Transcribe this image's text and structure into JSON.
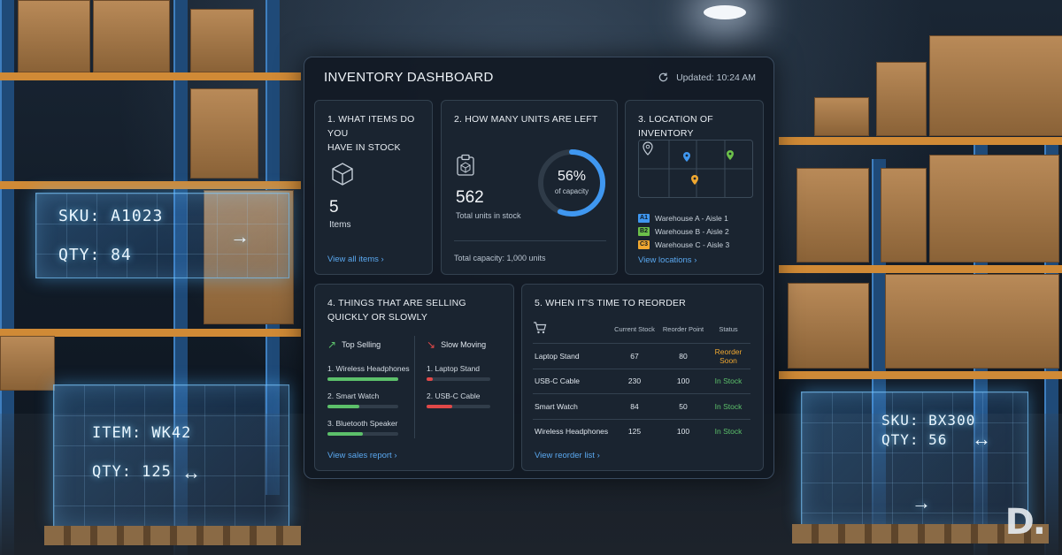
{
  "dashboard": {
    "title": "INVENTORY DASHBOARD",
    "updated": "Updated: 10:24 AM"
  },
  "stock_card": {
    "title_line1": "1. WHAT ITEMS DO YOU",
    "title_line2": "HAVE IN STOCK",
    "count": "5",
    "count_label": "Items",
    "link": "View all items",
    "icon": "box-icon"
  },
  "units_card": {
    "title": "2. HOW MANY UNITS ARE LEFT",
    "units": "562",
    "units_label": "Total units in stock",
    "capacity_percent_label": "56%",
    "capacity_sub": "of capacity",
    "capacity_fraction": 0.56,
    "total_capacity": "Total capacity: 1,000 units",
    "ring_color": "#3f97f0",
    "icon": "clipboard-icon"
  },
  "location_card": {
    "title": "3. LOCATION OF INVENTORY",
    "legend": [
      {
        "badge": "A1",
        "label": "Warehouse A - Aisle 1",
        "color": "#3f97f0"
      },
      {
        "badge": "B2",
        "label": "Warehouse B - Aisle 2",
        "color": "#6cc04a"
      },
      {
        "badge": "C3",
        "label": "Warehouse C - Aisle 3",
        "color": "#f0a830"
      }
    ],
    "link": "View locations",
    "icon": "map-pin-icon"
  },
  "selling_card": {
    "title_line1": "4. THINGS THAT ARE SELLING",
    "title_line2": "QUICKLY OR SLOWLY",
    "top_heading": "Top Selling",
    "slow_heading": "Slow Moving",
    "top_items": [
      {
        "label": "1. Wireless Headphones",
        "fill": 1.0
      },
      {
        "label": "2. Smart Watch",
        "fill": 0.45
      },
      {
        "label": "3. Bluetooth Speaker",
        "fill": 0.5
      }
    ],
    "slow_items": [
      {
        "label": "1. Laptop Stand",
        "fill": 0.1
      },
      {
        "label": "2. USB-C Cable",
        "fill": 0.4
      }
    ],
    "top_color": "#5cc06a",
    "slow_color": "#e04848",
    "link": "View sales report"
  },
  "reorder_card": {
    "title": "5. WHEN IT'S TIME TO REORDER",
    "headers": {
      "stock": "Current Stock",
      "point": "Reorder Point",
      "status": "Status"
    },
    "rows": [
      {
        "item": "Laptop Stand",
        "stock": "67",
        "point": "80",
        "status": "Reorder Soon",
        "status_color": "#f0a830"
      },
      {
        "item": "USB-C Cable",
        "stock": "230",
        "point": "100",
        "status": "In Stock",
        "status_color": "#5cc06a"
      },
      {
        "item": "Smart Watch",
        "stock": "84",
        "point": "50",
        "status": "In Stock",
        "status_color": "#5cc06a"
      },
      {
        "item": "Wireless Headphones",
        "stock": "125",
        "point": "100",
        "status": "In Stock",
        "status_color": "#5cc06a"
      }
    ],
    "link": "View reorder list",
    "icon": "cart-icon"
  },
  "holograms": {
    "left_sku": "SKU: A1023",
    "left_qty": "QTY: 84",
    "left_item": "ITEM: WK42",
    "left_item_qty": "QTY: 125",
    "right_sku": "SKU: BX300",
    "right_qty": "QTY: 56"
  },
  "watermark": "D."
}
